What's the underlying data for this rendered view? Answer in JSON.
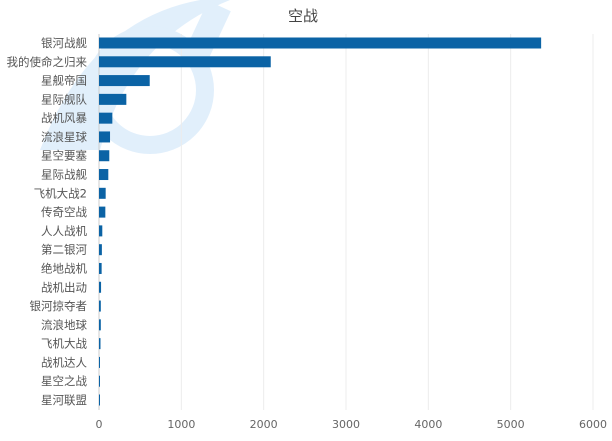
{
  "chart_data": {
    "type": "bar",
    "orientation": "horizontal",
    "title": "空战",
    "xlabel": "",
    "ylabel": "",
    "xlim": [
      0,
      6000
    ],
    "xticks": [
      0,
      1000,
      2000,
      3000,
      4000,
      5000,
      6000
    ],
    "grid": true,
    "color": "#0b63a5",
    "categories": [
      "银河战舰",
      "我的使命之归来",
      "星舰帝国",
      "星际舰队",
      "战机风暴",
      "流浪星球",
      "星空要塞",
      "星际战舰",
      "飞机大战2",
      "传奇空战",
      "人人战机",
      "第二银河",
      "绝地战机",
      "战机出动",
      "银河掠夺者",
      "流浪地球",
      "飞机大战",
      "战机达人",
      "星空之战",
      "星河联盟"
    ],
    "values": [
      5370,
      2086,
      616,
      332,
      162,
      134,
      125,
      113,
      81,
      77,
      40,
      35,
      32,
      25,
      22,
      22,
      18,
      12,
      8,
      5
    ]
  }
}
